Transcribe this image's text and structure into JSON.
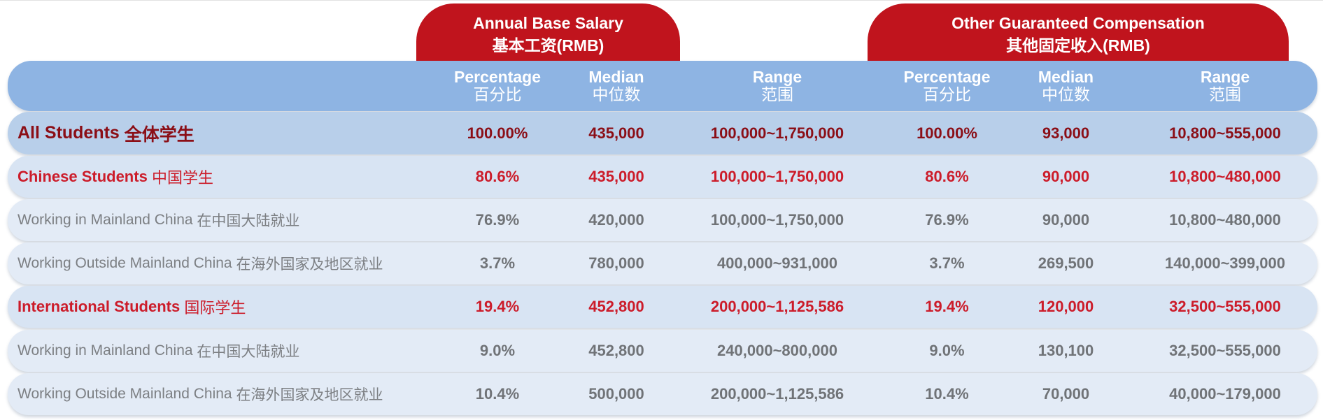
{
  "groups": {
    "base_salary": {
      "en": "Annual Base Salary",
      "cn": "基本工资(RMB)"
    },
    "other_comp": {
      "en": "Other Guaranteed Compensation",
      "cn": "其他固定收入(RMB)"
    }
  },
  "headers": {
    "percentage": {
      "en": "Percentage",
      "cn": "百分比"
    },
    "median": {
      "en": "Median",
      "cn": "中位数"
    },
    "range": {
      "en": "Range",
      "cn": "范围"
    }
  },
  "colors": {
    "group_tab": "#c0141d",
    "header_band": "#8eb4e3",
    "highlight_text": "#cc1c2a",
    "detail_text": "#707377"
  },
  "chart_data": {
    "type": "table",
    "title": "",
    "columns": [
      "Percentage",
      "Median",
      "Range",
      "Percentage",
      "Median",
      "Range"
    ],
    "rows": [
      {
        "label_en": "All Students",
        "label_cn": "全体学生",
        "values": [
          "100.00%",
          "435,000",
          "100,000~1,750,000",
          "100.00%",
          "93,000",
          "10,800~555,000"
        ]
      },
      {
        "label_en": "Chinese Students",
        "label_cn": "中国学生",
        "values": [
          "80.6%",
          "435,000",
          "100,000~1,750,000",
          "80.6%",
          "90,000",
          "10,800~480,000"
        ]
      },
      {
        "label_en": "Working in Mainland China",
        "label_cn": "在中国大陆就业",
        "values": [
          "76.9%",
          "420,000",
          "100,000~1,750,000",
          "76.9%",
          "90,000",
          "10,800~480,000"
        ]
      },
      {
        "label_en": "Working Outside Mainland China",
        "label_cn": "在海外国家及地区就业",
        "values": [
          "3.7%",
          "780,000",
          "400,000~931,000",
          "3.7%",
          "269,500",
          "140,000~399,000"
        ]
      },
      {
        "label_en": "International Students",
        "label_cn": "国际学生",
        "values": [
          "19.4%",
          "452,800",
          "200,000~1,125,586",
          "19.4%",
          "120,000",
          "32,500~555,000"
        ]
      },
      {
        "label_en": "Working in Mainland China",
        "label_cn": "在中国大陆就业",
        "values": [
          "9.0%",
          "452,800",
          "240,000~800,000",
          "9.0%",
          "130,100",
          "32,500~555,000"
        ]
      },
      {
        "label_en": "Working Outside Mainland China",
        "label_cn": "在海外国家及地区就业",
        "values": [
          "10.4%",
          "500,000",
          "200,000~1,125,586",
          "10.4%",
          "70,000",
          "40,000~179,000"
        ]
      }
    ]
  }
}
